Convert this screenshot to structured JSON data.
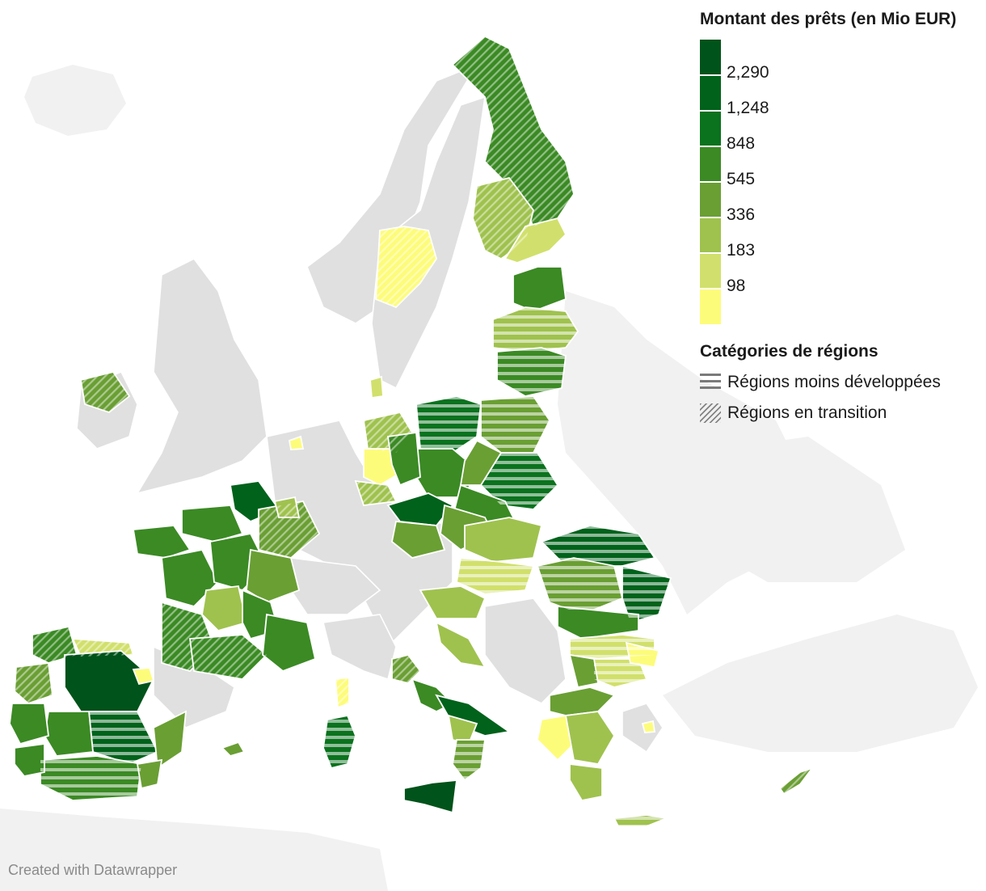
{
  "legend": {
    "title": "Montant des prêts (en Mio EUR)",
    "scale": [
      {
        "label": "",
        "color": "#00531a"
      },
      {
        "label": "2,290",
        "color": "#00621b"
      },
      {
        "label": "1,248",
        "color": "#0b721e"
      },
      {
        "label": "848",
        "color": "#3b8a24"
      },
      {
        "label": "545",
        "color": "#6a9f34"
      },
      {
        "label": "336",
        "color": "#9fc24e"
      },
      {
        "label": "183",
        "color": "#d1e06c"
      },
      {
        "label": "98",
        "color": "#fdfc7a"
      }
    ],
    "categories_title": "Catégories de régions",
    "categories": [
      {
        "label": "Régions moins développées",
        "pattern": "horizontal-stripes"
      },
      {
        "label": "Régions en transition",
        "pattern": "diagonal-hatch"
      }
    ]
  },
  "colors": {
    "non_eu_land": "#e6e6e6",
    "far_land": "#f1f1f1",
    "borders": "#ffffff",
    "background": "#ffffff"
  },
  "footer": "Created with Datawrapper"
}
